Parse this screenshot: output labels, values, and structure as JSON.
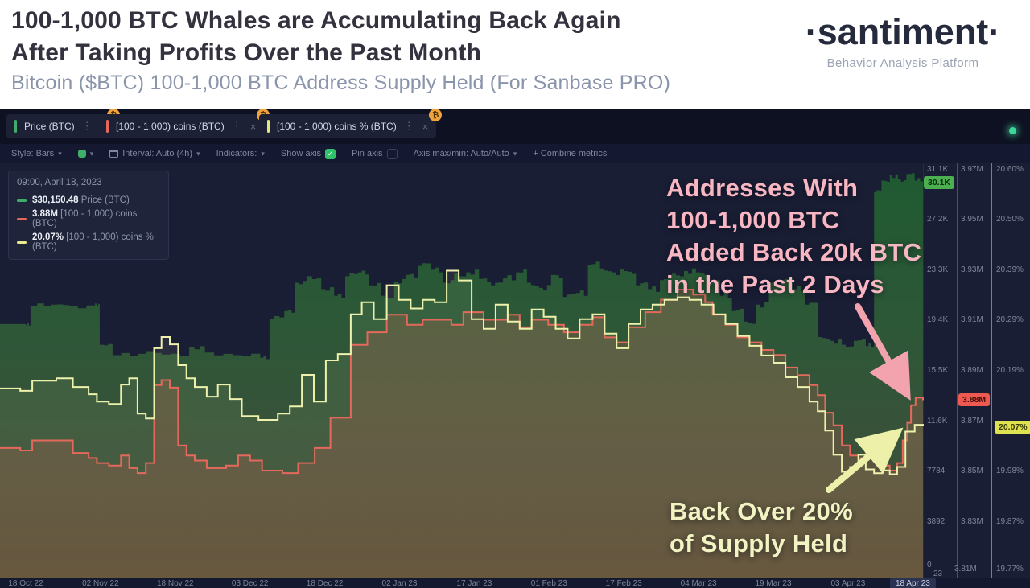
{
  "header": {
    "title_line1": "100-1,000 BTC Whales are Accumulating Back Again",
    "title_line2": "After Taking Profits Over the Past Month",
    "subtitle": "Bitcoin ($BTC) 100-1,000 BTC Address Supply Held (For Sanbase PRO)",
    "logo": "·santiment·",
    "tagline": "Behavior Analysis Platform"
  },
  "tabs": [
    {
      "label": "Price (BTC)",
      "color": "#3fae6a",
      "badge": "₿",
      "kebab": "⋮",
      "close": "×"
    },
    {
      "label": "[100 - 1,000) coins (BTC)",
      "color": "#e4695c",
      "badge": "₿",
      "kebab": "⋮",
      "close": "×"
    },
    {
      "label": "[100 - 1,000) coins % (BTC)",
      "color": "#e3e87a",
      "badge": "₿",
      "kebab": "⋮",
      "close": "×"
    }
  ],
  "toolbar": {
    "style": "Style: Bars",
    "interval": "Interval: Auto (4h)",
    "indicators": "Indicators:",
    "show_axis": "Show axis",
    "pin_axis": "Pin axis",
    "axis_maxmin": "Axis max/min: Auto/Auto",
    "combine": "+ Combine metrics",
    "caret": "▾",
    "check": "✓"
  },
  "tooltip": {
    "heading": "09:00, April 18, 2023",
    "rows": [
      {
        "value": "$30,150.48",
        "label": "Price (BTC)",
        "color": "#3fae6a"
      },
      {
        "value": "3.88M",
        "label": "[100 - 1,000) coins (BTC)",
        "color": "#e4695c"
      },
      {
        "value": "20.07%",
        "label": "[100 - 1,000) coins % (BTC)",
        "color": "#e7eb8f"
      }
    ]
  },
  "annotations": {
    "pink": {
      "lines": [
        "Addresses With",
        "100-1,000 BTC",
        "Added Back 20k BTC",
        "in the Past 2 Days"
      ],
      "color": "#f8b6c2"
    },
    "yellow": {
      "lines": [
        "Back Over 20%",
        "of Supply Held"
      ],
      "color": "#f1f4c2"
    }
  },
  "badges": {
    "price": "30.1K",
    "coins": "3.88M",
    "percent": "20.07%"
  },
  "corner_label": "23",
  "chart_data": {
    "type": "line",
    "title": "Bitcoin ($BTC) 100-1,000 BTC Address Supply Held",
    "x_ticks": [
      "18 Oct 22",
      "02 Nov 22",
      "18 Nov 22",
      "03 Dec 22",
      "18 Dec 22",
      "02 Jan 23",
      "17 Jan 23",
      "01 Feb 23",
      "17 Feb 23",
      "04 Mar 23",
      "19 Mar 23",
      "03 Apr 23"
    ],
    "x_active_tick": "18 Apr 23",
    "grid": false,
    "legend_position": "top-left-tooltip",
    "axes": {
      "price": {
        "min": 0,
        "max": 31100,
        "tick_labels": [
          "31.1K",
          "27.2K",
          "23.3K",
          "19.4K",
          "15.5K",
          "11.6K",
          "7784",
          "3892"
        ],
        "bottom_label": "0"
      },
      "coins": {
        "min": 3.81,
        "max": 3.97,
        "tick_labels": [
          "3.97M",
          "3.95M",
          "3.93M",
          "3.91M",
          "3.89M",
          "3.87M",
          "3.85M",
          "3.83M"
        ],
        "bottom_label": "3.81M"
      },
      "percent": {
        "min": 19.77,
        "max": 20.6,
        "tick_labels": [
          "20.60%",
          "20.50%",
          "20.39%",
          "20.29%",
          "20.19%",
          "19.98%",
          "19.87%"
        ],
        "bottom_label": "19.77%"
      }
    },
    "series": [
      {
        "name": "Price (BTC)",
        "axis": "price",
        "type": "area",
        "color": "#2e7a43",
        "jitter": true,
        "points": [
          [
            0.0,
            19100
          ],
          [
            0.028,
            19000
          ],
          [
            0.033,
            20500
          ],
          [
            0.055,
            20600
          ],
          [
            0.075,
            20500
          ],
          [
            0.103,
            20700
          ],
          [
            0.108,
            17500
          ],
          [
            0.122,
            16700
          ],
          [
            0.15,
            16800
          ],
          [
            0.175,
            16750
          ],
          [
            0.205,
            17300
          ],
          [
            0.222,
            16900
          ],
          [
            0.252,
            16700
          ],
          [
            0.282,
            16500
          ],
          [
            0.292,
            19500
          ],
          [
            0.308,
            20100
          ],
          [
            0.32,
            22300
          ],
          [
            0.333,
            22800
          ],
          [
            0.348,
            21800
          ],
          [
            0.362,
            21300
          ],
          [
            0.374,
            22800
          ],
          [
            0.388,
            23100
          ],
          [
            0.4,
            22100
          ],
          [
            0.413,
            21300
          ],
          [
            0.427,
            22400
          ],
          [
            0.44,
            22900
          ],
          [
            0.453,
            23600
          ],
          [
            0.467,
            23300
          ],
          [
            0.48,
            22300
          ],
          [
            0.492,
            23000
          ],
          [
            0.505,
            23100
          ],
          [
            0.519,
            22600
          ],
          [
            0.532,
            22100
          ],
          [
            0.545,
            22700
          ],
          [
            0.559,
            23100
          ],
          [
            0.571,
            22300
          ],
          [
            0.584,
            21900
          ],
          [
            0.597,
            22900
          ],
          [
            0.61,
            21200
          ],
          [
            0.624,
            21500
          ],
          [
            0.637,
            23700
          ],
          [
            0.65,
            23400
          ],
          [
            0.663,
            23100
          ],
          [
            0.676,
            23200
          ],
          [
            0.689,
            22100
          ],
          [
            0.702,
            21800
          ],
          [
            0.715,
            22500
          ],
          [
            0.728,
            23000
          ],
          [
            0.741,
            23200
          ],
          [
            0.754,
            23100
          ],
          [
            0.768,
            22300
          ],
          [
            0.78,
            21300
          ],
          [
            0.793,
            20100
          ],
          [
            0.806,
            19300
          ],
          [
            0.819,
            20600
          ],
          [
            0.833,
            22300
          ],
          [
            0.846,
            22500
          ],
          [
            0.859,
            21800
          ],
          [
            0.872,
            20600
          ],
          [
            0.886,
            18100
          ],
          [
            0.899,
            17800
          ],
          [
            0.912,
            17500
          ],
          [
            0.925,
            17800
          ],
          [
            0.938,
            17400
          ],
          [
            0.947,
            29300
          ],
          [
            0.955,
            30200
          ],
          [
            0.964,
            30600
          ],
          [
            0.973,
            30300
          ],
          [
            0.982,
            30700
          ],
          [
            0.991,
            30200
          ],
          [
            1.0,
            30400
          ]
        ]
      },
      {
        "name": "[100 - 1,000) coins (BTC)",
        "axis": "coins",
        "type": "area-line",
        "color": "#e4695c",
        "points": [
          [
            0.0,
            3.859
          ],
          [
            0.022,
            3.858
          ],
          [
            0.035,
            3.862
          ],
          [
            0.061,
            3.862
          ],
          [
            0.079,
            3.857
          ],
          [
            0.096,
            3.855
          ],
          [
            0.105,
            3.853
          ],
          [
            0.118,
            3.852
          ],
          [
            0.131,
            3.856
          ],
          [
            0.14,
            3.851
          ],
          [
            0.149,
            3.849
          ],
          [
            0.158,
            3.853
          ],
          [
            0.167,
            3.884
          ],
          [
            0.175,
            3.886
          ],
          [
            0.184,
            3.883
          ],
          [
            0.193,
            3.86
          ],
          [
            0.202,
            3.856
          ],
          [
            0.211,
            3.854
          ],
          [
            0.224,
            3.851
          ],
          [
            0.245,
            3.852
          ],
          [
            0.258,
            3.856
          ],
          [
            0.271,
            3.854
          ],
          [
            0.284,
            3.85
          ],
          [
            0.306,
            3.849
          ],
          [
            0.323,
            3.853
          ],
          [
            0.341,
            3.859
          ],
          [
            0.358,
            3.871
          ],
          [
            0.38,
            3.9
          ],
          [
            0.398,
            3.905
          ],
          [
            0.419,
            3.912
          ],
          [
            0.441,
            3.908
          ],
          [
            0.458,
            3.91
          ],
          [
            0.489,
            3.908
          ],
          [
            0.502,
            3.913
          ],
          [
            0.524,
            3.91
          ],
          [
            0.55,
            3.912
          ],
          [
            0.563,
            3.907
          ],
          [
            0.576,
            3.91
          ],
          [
            0.594,
            3.908
          ],
          [
            0.611,
            3.905
          ],
          [
            0.628,
            3.908
          ],
          [
            0.642,
            3.911
          ],
          [
            0.655,
            3.903
          ],
          [
            0.668,
            3.901
          ],
          [
            0.681,
            3.907
          ],
          [
            0.699,
            3.913
          ],
          [
            0.716,
            3.918
          ],
          [
            0.734,
            3.922
          ],
          [
            0.751,
            3.92
          ],
          [
            0.764,
            3.917
          ],
          [
            0.772,
            3.912
          ],
          [
            0.786,
            3.908
          ],
          [
            0.799,
            3.903
          ],
          [
            0.812,
            3.901
          ],
          [
            0.825,
            3.898
          ],
          [
            0.838,
            3.896
          ],
          [
            0.851,
            3.891
          ],
          [
            0.864,
            3.888
          ],
          [
            0.877,
            3.884
          ],
          [
            0.886,
            3.88
          ],
          [
            0.894,
            3.873
          ],
          [
            0.903,
            3.868
          ],
          [
            0.912,
            3.86
          ],
          [
            0.921,
            3.856
          ],
          [
            0.93,
            3.855
          ],
          [
            0.938,
            3.858
          ],
          [
            0.947,
            3.854
          ],
          [
            0.956,
            3.852
          ],
          [
            0.964,
            3.85
          ],
          [
            0.972,
            3.853
          ],
          [
            0.978,
            3.862
          ],
          [
            0.983,
            3.869
          ],
          [
            0.987,
            3.876
          ],
          [
            0.992,
            3.879
          ],
          [
            1.0,
            3.878
          ]
        ]
      },
      {
        "name": "[100 - 1,000) coins % (BTC)",
        "axis": "percent",
        "type": "line",
        "color": "#edf1ab",
        "points": [
          [
            0.0,
            20.147
          ],
          [
            0.022,
            20.142
          ],
          [
            0.035,
            20.163
          ],
          [
            0.061,
            20.168
          ],
          [
            0.079,
            20.15
          ],
          [
            0.096,
            20.135
          ],
          [
            0.105,
            20.12
          ],
          [
            0.118,
            20.115
          ],
          [
            0.131,
            20.155
          ],
          [
            0.14,
            20.168
          ],
          [
            0.149,
            20.095
          ],
          [
            0.158,
            20.085
          ],
          [
            0.167,
            20.23
          ],
          [
            0.175,
            20.253
          ],
          [
            0.184,
            20.238
          ],
          [
            0.193,
            20.195
          ],
          [
            0.202,
            20.168
          ],
          [
            0.211,
            20.15
          ],
          [
            0.224,
            20.13
          ],
          [
            0.236,
            20.155
          ],
          [
            0.249,
            20.125
          ],
          [
            0.262,
            20.09
          ],
          [
            0.28,
            20.082
          ],
          [
            0.301,
            20.095
          ],
          [
            0.314,
            20.11
          ],
          [
            0.327,
            20.175
          ],
          [
            0.34,
            20.12
          ],
          [
            0.353,
            20.205
          ],
          [
            0.366,
            20.218
          ],
          [
            0.38,
            20.3
          ],
          [
            0.392,
            20.325
          ],
          [
            0.405,
            20.29
          ],
          [
            0.419,
            20.36
          ],
          [
            0.432,
            20.33
          ],
          [
            0.445,
            20.312
          ],
          [
            0.458,
            20.33
          ],
          [
            0.471,
            20.325
          ],
          [
            0.484,
            20.39
          ],
          [
            0.497,
            20.37
          ],
          [
            0.511,
            20.29
          ],
          [
            0.524,
            20.27
          ],
          [
            0.537,
            20.32
          ],
          [
            0.55,
            20.285
          ],
          [
            0.563,
            20.27
          ],
          [
            0.576,
            20.31
          ],
          [
            0.589,
            20.295
          ],
          [
            0.602,
            20.27
          ],
          [
            0.615,
            20.25
          ],
          [
            0.628,
            20.29
          ],
          [
            0.642,
            20.3
          ],
          [
            0.655,
            20.26
          ],
          [
            0.668,
            20.23
          ],
          [
            0.681,
            20.28
          ],
          [
            0.694,
            20.31
          ],
          [
            0.707,
            20.32
          ],
          [
            0.72,
            20.33
          ],
          [
            0.734,
            20.335
          ],
          [
            0.747,
            20.33
          ],
          [
            0.76,
            20.32
          ],
          [
            0.773,
            20.3
          ],
          [
            0.786,
            20.28
          ],
          [
            0.799,
            20.255
          ],
          [
            0.812,
            20.235
          ],
          [
            0.825,
            20.215
          ],
          [
            0.838,
            20.2
          ],
          [
            0.851,
            20.17
          ],
          [
            0.864,
            20.15
          ],
          [
            0.877,
            20.12
          ],
          [
            0.886,
            20.1
          ],
          [
            0.894,
            20.06
          ],
          [
            0.903,
            20.01
          ],
          [
            0.912,
            19.975
          ],
          [
            0.921,
            19.985
          ],
          [
            0.93,
            20.01
          ],
          [
            0.938,
            19.98
          ],
          [
            0.947,
            19.972
          ],
          [
            0.956,
            19.978
          ],
          [
            0.964,
            19.97
          ],
          [
            0.972,
            19.985
          ],
          [
            0.981,
            20.058
          ],
          [
            0.991,
            20.072
          ],
          [
            1.0,
            20.07
          ]
        ]
      }
    ]
  }
}
